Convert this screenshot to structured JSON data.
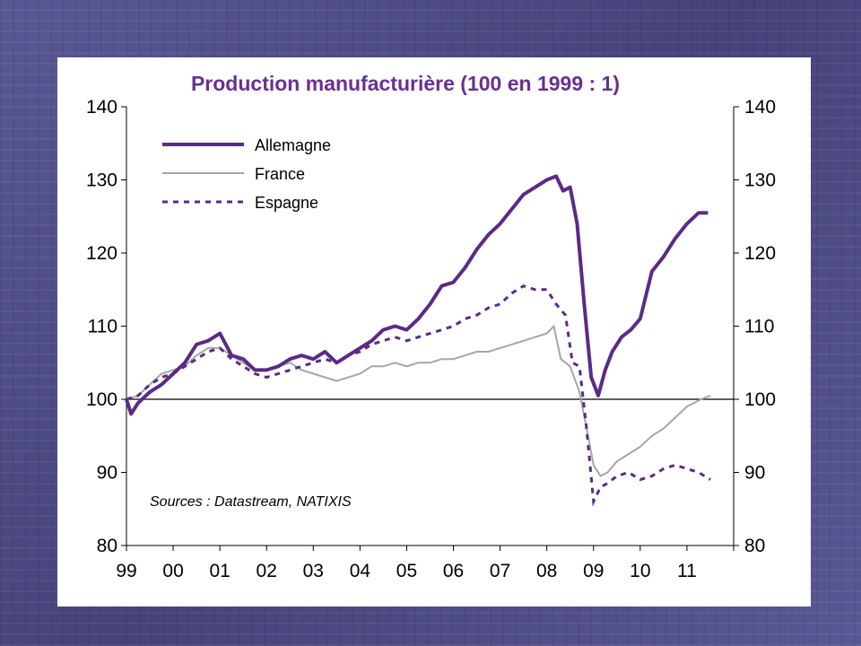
{
  "chart_data": {
    "type": "line",
    "title": "Production manufacturière (100 en 1999 : 1)",
    "source_note": "Sources : Datastream, NATIXIS",
    "ylim": [
      80,
      140
    ],
    "y_ticks": [
      80,
      90,
      100,
      110,
      120,
      130,
      140
    ],
    "y_tick_labels": [
      "80",
      "90",
      "100",
      "110",
      "120",
      "130",
      "140"
    ],
    "secondary_y_tick_labels": [
      "80",
      "90",
      "100",
      "110",
      "120",
      "130",
      "140"
    ],
    "x_tick_labels": [
      "99",
      "00",
      "01",
      "02",
      "03",
      "04",
      "05",
      "06",
      "07",
      "08",
      "09",
      "10",
      "11"
    ],
    "xlim": [
      1999.0,
      2012.0
    ],
    "reference_line": 100,
    "legend_position": "top-left",
    "grid": false,
    "series": [
      {
        "name": "Allemagne",
        "color": "#5b2a86",
        "style": "solid-thick",
        "x": [
          1999.0,
          1999.1,
          1999.25,
          1999.5,
          1999.75,
          2000.0,
          2000.25,
          2000.5,
          2000.75,
          2001.0,
          2001.25,
          2001.5,
          2001.75,
          2002.0,
          2002.25,
          2002.5,
          2002.75,
          2003.0,
          2003.25,
          2003.5,
          2003.75,
          2004.0,
          2004.25,
          2004.5,
          2004.75,
          2005.0,
          2005.25,
          2005.5,
          2005.75,
          2006.0,
          2006.25,
          2006.5,
          2006.75,
          2007.0,
          2007.25,
          2007.5,
          2007.75,
          2008.0,
          2008.2,
          2008.35,
          2008.5,
          2008.65,
          2008.8,
          2008.95,
          2009.1,
          2009.25,
          2009.4,
          2009.6,
          2009.8,
          2010.0,
          2010.25,
          2010.5,
          2010.75,
          2011.0,
          2011.25,
          2011.45
        ],
        "values": [
          100.0,
          98.0,
          99.5,
          101.0,
          102.0,
          103.5,
          105.0,
          107.5,
          108.0,
          109.0,
          106.0,
          105.5,
          104.0,
          104.0,
          104.5,
          105.5,
          106.0,
          105.5,
          106.5,
          105.0,
          106.0,
          107.0,
          108.0,
          109.5,
          110.0,
          109.5,
          111.0,
          113.0,
          115.5,
          116.0,
          118.0,
          120.5,
          122.5,
          124.0,
          126.0,
          128.0,
          129.0,
          130.0,
          130.5,
          128.5,
          129.0,
          124.0,
          113.0,
          103.0,
          100.5,
          104.0,
          106.5,
          108.5,
          109.5,
          111.0,
          117.5,
          119.5,
          122.0,
          124.0,
          125.5,
          125.5
        ]
      },
      {
        "name": "France",
        "color": "#a6a6a6",
        "style": "solid-thin",
        "x": [
          1999.0,
          1999.25,
          1999.5,
          1999.75,
          2000.0,
          2000.25,
          2000.5,
          2000.75,
          2001.0,
          2001.25,
          2001.5,
          2001.75,
          2002.0,
          2002.25,
          2002.5,
          2002.75,
          2003.0,
          2003.25,
          2003.5,
          2003.75,
          2004.0,
          2004.25,
          2004.5,
          2004.75,
          2005.0,
          2005.25,
          2005.5,
          2005.75,
          2006.0,
          2006.25,
          2006.5,
          2006.75,
          2007.0,
          2007.25,
          2007.5,
          2007.75,
          2008.0,
          2008.15,
          2008.3,
          2008.5,
          2008.7,
          2008.85,
          2009.0,
          2009.15,
          2009.3,
          2009.5,
          2009.75,
          2010.0,
          2010.25,
          2010.5,
          2010.75,
          2011.0,
          2011.15,
          2011.3,
          2011.5
        ],
        "values": [
          100.0,
          100.5,
          102.0,
          103.5,
          104.0,
          104.5,
          106.0,
          107.0,
          107.0,
          106.0,
          105.0,
          104.0,
          104.0,
          104.5,
          105.0,
          104.0,
          103.5,
          103.0,
          102.5,
          103.0,
          103.5,
          104.5,
          104.5,
          105.0,
          104.5,
          105.0,
          105.0,
          105.5,
          105.5,
          106.0,
          106.5,
          106.5,
          107.0,
          107.5,
          108.0,
          108.5,
          109.0,
          110.0,
          105.5,
          104.5,
          101.0,
          96.0,
          91.0,
          89.5,
          90.0,
          91.5,
          92.5,
          93.5,
          95.0,
          96.0,
          97.5,
          99.0,
          99.5,
          100.0,
          100.5
        ]
      },
      {
        "name": "Espagne",
        "color": "#5b2a86",
        "style": "dashed",
        "x": [
          1999.0,
          1999.25,
          1999.5,
          1999.75,
          2000.0,
          2000.25,
          2000.5,
          2000.75,
          2001.0,
          2001.25,
          2001.5,
          2001.75,
          2002.0,
          2002.25,
          2002.5,
          2002.75,
          2003.0,
          2003.25,
          2003.5,
          2003.75,
          2004.0,
          2004.25,
          2004.5,
          2004.75,
          2005.0,
          2005.25,
          2005.5,
          2005.75,
          2006.0,
          2006.25,
          2006.5,
          2006.75,
          2007.0,
          2007.25,
          2007.5,
          2007.75,
          2008.0,
          2008.2,
          2008.4,
          2008.55,
          2008.7,
          2008.85,
          2009.0,
          2009.15,
          2009.3,
          2009.5,
          2009.75,
          2010.0,
          2010.25,
          2010.5,
          2010.75,
          2011.0,
          2011.25,
          2011.5
        ],
        "values": [
          100.0,
          100.5,
          102.0,
          103.0,
          103.5,
          104.5,
          105.5,
          106.5,
          107.0,
          105.5,
          104.5,
          103.5,
          103.0,
          103.5,
          104.0,
          104.5,
          105.0,
          105.5,
          105.0,
          106.0,
          106.5,
          107.5,
          108.0,
          108.5,
          108.0,
          108.5,
          109.0,
          109.5,
          110.0,
          111.0,
          111.5,
          112.5,
          113.0,
          114.5,
          115.5,
          115.0,
          115.0,
          113.0,
          111.5,
          105.0,
          104.5,
          96.0,
          86.0,
          88.0,
          88.5,
          89.5,
          90.0,
          89.0,
          89.5,
          90.5,
          91.0,
          90.5,
          90.0,
          89.0
        ]
      }
    ]
  }
}
